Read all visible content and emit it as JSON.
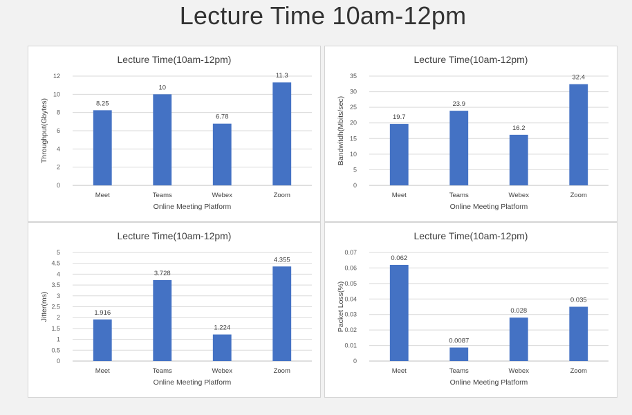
{
  "page": {
    "title": "Lecture Time 10am-12pm"
  },
  "chart_data": [
    {
      "type": "bar",
      "title": "Lecture Time(10am-12pm)",
      "xlabel": "Online Meeting Platform",
      "ylabel": "Throughput(Gbytes)",
      "categories": [
        "Meet",
        "Teams",
        "Webex",
        "Zoom"
      ],
      "values": [
        8.25,
        10,
        6.78,
        11.3
      ],
      "value_labels": [
        "8.25",
        "10",
        "6.78",
        "11.3"
      ],
      "ylim": [
        0,
        12
      ],
      "yticks": [
        "0",
        "2",
        "4",
        "6",
        "8",
        "10",
        "12"
      ],
      "grid": true,
      "color": "#4472c4"
    },
    {
      "type": "bar",
      "title": "Lecture Time(10am-12pm)",
      "xlabel": "Online Meeting Platform",
      "ylabel": "Bandwitdh(Mbits/sec)",
      "categories": [
        "Meet",
        "Teams",
        "Webex",
        "Zoom"
      ],
      "values": [
        19.7,
        23.9,
        16.2,
        32.4
      ],
      "value_labels": [
        "19.7",
        "23.9",
        "16.2",
        "32.4"
      ],
      "ylim": [
        0,
        35
      ],
      "yticks": [
        "0",
        "5",
        "10",
        "15",
        "20",
        "25",
        "30",
        "35"
      ],
      "grid": true,
      "color": "#4472c4"
    },
    {
      "type": "bar",
      "title": "Lecture Time(10am-12pm)",
      "xlabel": "Online Meeting Platform",
      "ylabel": "Jitter(ms)",
      "categories": [
        "Meet",
        "Teams",
        "Webex",
        "Zoom"
      ],
      "values": [
        1.916,
        3.728,
        1.224,
        4.355
      ],
      "value_labels": [
        "1.916",
        "3.728",
        "1.224",
        "4.355"
      ],
      "ylim": [
        0,
        5
      ],
      "yticks": [
        "0",
        "0.5",
        "1",
        "1.5",
        "2",
        "2.5",
        "3",
        "3.5",
        "4",
        "4.5",
        "5"
      ],
      "grid": true,
      "color": "#4472c4"
    },
    {
      "type": "bar",
      "title": "Lecture Time(10am-12pm)",
      "xlabel": "Online Meeting Platform",
      "ylabel": "Packet Loss(%)",
      "categories": [
        "Meet",
        "Teams",
        "Webex",
        "Zoom"
      ],
      "values": [
        0.062,
        0.0087,
        0.028,
        0.035
      ],
      "value_labels": [
        "0.062",
        "0.0087",
        "0.028",
        "0.035"
      ],
      "ylim": [
        0,
        0.07
      ],
      "yticks": [
        "0",
        "0.01",
        "0.02",
        "0.03",
        "0.04",
        "0.05",
        "0.06",
        "0.07"
      ],
      "grid": true,
      "color": "#4472c4"
    }
  ]
}
